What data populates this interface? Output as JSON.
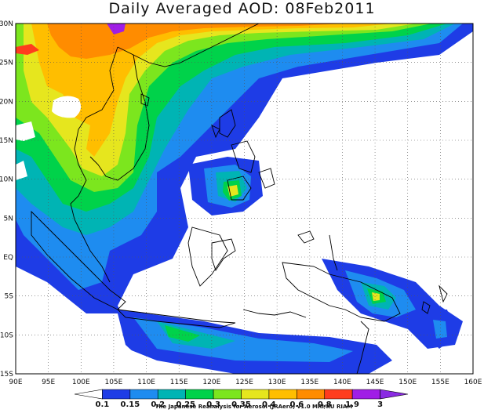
{
  "title": "Daily Averaged AOD: 08Feb2011",
  "credit": "The Japanese Reanalysis for Aerosol (JRAero) v1.0 MRI/KU RIAM",
  "lon_labels": [
    "90E",
    "95E",
    "100E",
    "105E",
    "110E",
    "115E",
    "120E",
    "125E",
    "130E",
    "135E",
    "140E",
    "145E",
    "150E",
    "155E",
    "160E"
  ],
  "lat_labels": [
    "30N",
    "25N",
    "20N",
    "15N",
    "10N",
    "5N",
    "EQ",
    "5S",
    "10S",
    "15S"
  ],
  "colorbar": {
    "labels": [
      "0.1",
      "0.15",
      "0.2",
      "0.25",
      "0.3",
      "0.35",
      "0.4",
      "0.6",
      "0.8",
      "1.9",
      "3"
    ],
    "colors": [
      "#ffffff",
      "#1e3ce6",
      "#1e8cf0",
      "#00b4b4",
      "#00d24a",
      "#7ce61e",
      "#e6e61e",
      "#ffbe00",
      "#ff8c00",
      "#ff3c1e",
      "#a01ee6",
      "#8a2be2"
    ]
  },
  "chart_data": {
    "type": "heatmap",
    "title": "Daily Averaged AOD: 08Feb2011",
    "x_range": [
      "90E",
      "160E"
    ],
    "y_range": [
      "15S",
      "30N"
    ],
    "levels": [
      0.1,
      0.15,
      0.2,
      0.25,
      0.3,
      0.35,
      0.4,
      0.6,
      0.8,
      1.9,
      3
    ],
    "grid": "dotted"
  }
}
